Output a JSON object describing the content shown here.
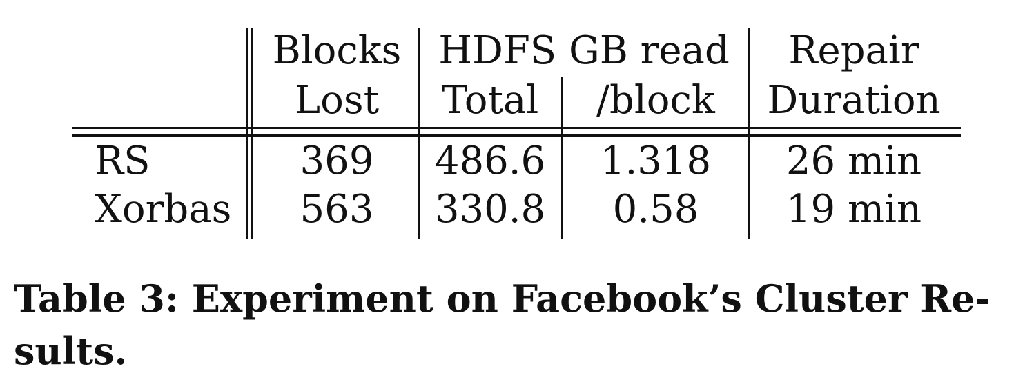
{
  "table": {
    "header_row1": {
      "blocks": "Blocks",
      "hdfs": "HDFS GB read",
      "repair": "Repair"
    },
    "header_row2": {
      "lost": "Lost",
      "total": "Total",
      "per_block": "/block",
      "duration": "Duration"
    },
    "rows": [
      {
        "name": "RS",
        "blocks_lost": "369",
        "total": "486.6",
        "per_block": "1.318",
        "duration": "26 min"
      },
      {
        "name": "Xorbas",
        "blocks_lost": "563",
        "total": "330.8",
        "per_block": "0.58",
        "duration": "19 min"
      }
    ]
  },
  "caption": {
    "line1": "Table 3: Experiment on Facebook’s Cluster Re-",
    "line2": "sults."
  }
}
